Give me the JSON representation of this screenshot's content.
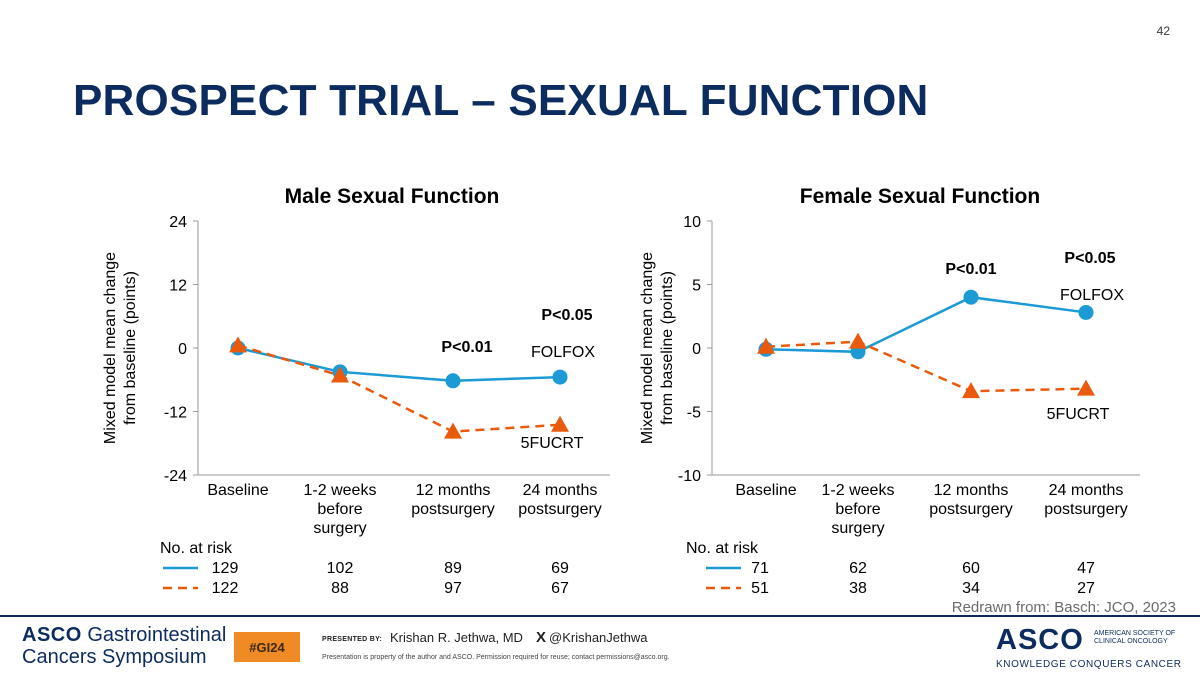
{
  "slide": {
    "number": "42",
    "title": "PROSPECT TRIAL – SEXUAL FUNCTION"
  },
  "colors": {
    "folfox": "#1c9ad6",
    "fucrt": "#ea5a0c",
    "title": "#0c2b5e",
    "hashtag_bg": "#f08a24"
  },
  "chart_data": [
    {
      "type": "line",
      "title": "Male Sexual Function",
      "ylabel": "Mixed model mean change from baseline (points)",
      "ylabel_lines": [
        "Mixed model mean change",
        "from baseline (points)"
      ],
      "ylim": [
        -24,
        24
      ],
      "yticks": [
        "24",
        "12",
        "0",
        "-12",
        "-24"
      ],
      "ytick_values": [
        24,
        12,
        0,
        -12,
        -24
      ],
      "categories": [
        [
          "Baseline"
        ],
        [
          "1-2 weeks",
          "before",
          "surgery"
        ],
        [
          "12 months",
          "postsurgery"
        ],
        [
          "24 months",
          "postsurgery"
        ]
      ],
      "series": [
        {
          "name": "FOLFOX",
          "marker": "circle",
          "line": "solid",
          "values": [
            0,
            -4.5,
            -6.2,
            -5.5
          ],
          "risk": [
            "129",
            "102",
            "89",
            "69"
          ]
        },
        {
          "name": "5FUCRT",
          "marker": "triangle",
          "line": "dashed",
          "values": [
            0.5,
            -5.2,
            -15.8,
            -14.5
          ],
          "risk": [
            "122",
            "88",
            "97",
            "67"
          ]
        }
      ],
      "annotations": [
        "P<0.01",
        "P<0.05",
        "FOLFOX",
        "5FUCRT"
      ],
      "risk_label": "No. at risk"
    },
    {
      "type": "line",
      "title": "Female Sexual Function",
      "ylabel": "Mixed model mean change from baseline (points)",
      "ylabel_lines": [
        "Mixed model mean change",
        "from baseline (points)"
      ],
      "ylim": [
        -10,
        10
      ],
      "yticks": [
        "10",
        "5",
        "0",
        "-5",
        "-10"
      ],
      "ytick_values": [
        10,
        5,
        0,
        -5,
        -10
      ],
      "categories": [
        [
          "Baseline"
        ],
        [
          "1-2 weeks",
          "before",
          "surgery"
        ],
        [
          "12 months",
          "postsurgery"
        ],
        [
          "24 months",
          "postsurgery"
        ]
      ],
      "series": [
        {
          "name": "FOLFOX",
          "marker": "circle",
          "line": "solid",
          "values": [
            -0.1,
            -0.3,
            4.0,
            2.8
          ],
          "risk": [
            "71",
            "62",
            "60",
            "47"
          ]
        },
        {
          "name": "5FUCRT",
          "marker": "triangle",
          "line": "dashed",
          "values": [
            0.1,
            0.5,
            -3.4,
            -3.2
          ],
          "risk": [
            "51",
            "38",
            "34",
            "27"
          ]
        }
      ],
      "annotations": [
        "P<0.01",
        "P<0.05",
        "FOLFOX",
        "5FUCRT"
      ],
      "risk_label": "No. at risk"
    }
  ],
  "credit": "Redrawn from: Basch: JCO, 2023",
  "footer": {
    "logo_line1_brand": "ASCO",
    "logo_line1_rest": "Gastrointestinal",
    "logo_line2": "Cancers Symposium",
    "hashtag": "#GI24",
    "presented_by": "PRESENTED BY:",
    "presenter": "Krishan R. Jethwa, MD",
    "x_icon": "X",
    "handle": "@KrishanJethwa",
    "permission": "Presentation is property of the author and ASCO. Permission required for reuse; contact permissions@asco.org.",
    "asco_brand": "ASCO",
    "society": "AMERICAN SOCIETY OF CLINICAL ONCOLOGY",
    "tagline": "KNOWLEDGE CONQUERS CANCER"
  }
}
